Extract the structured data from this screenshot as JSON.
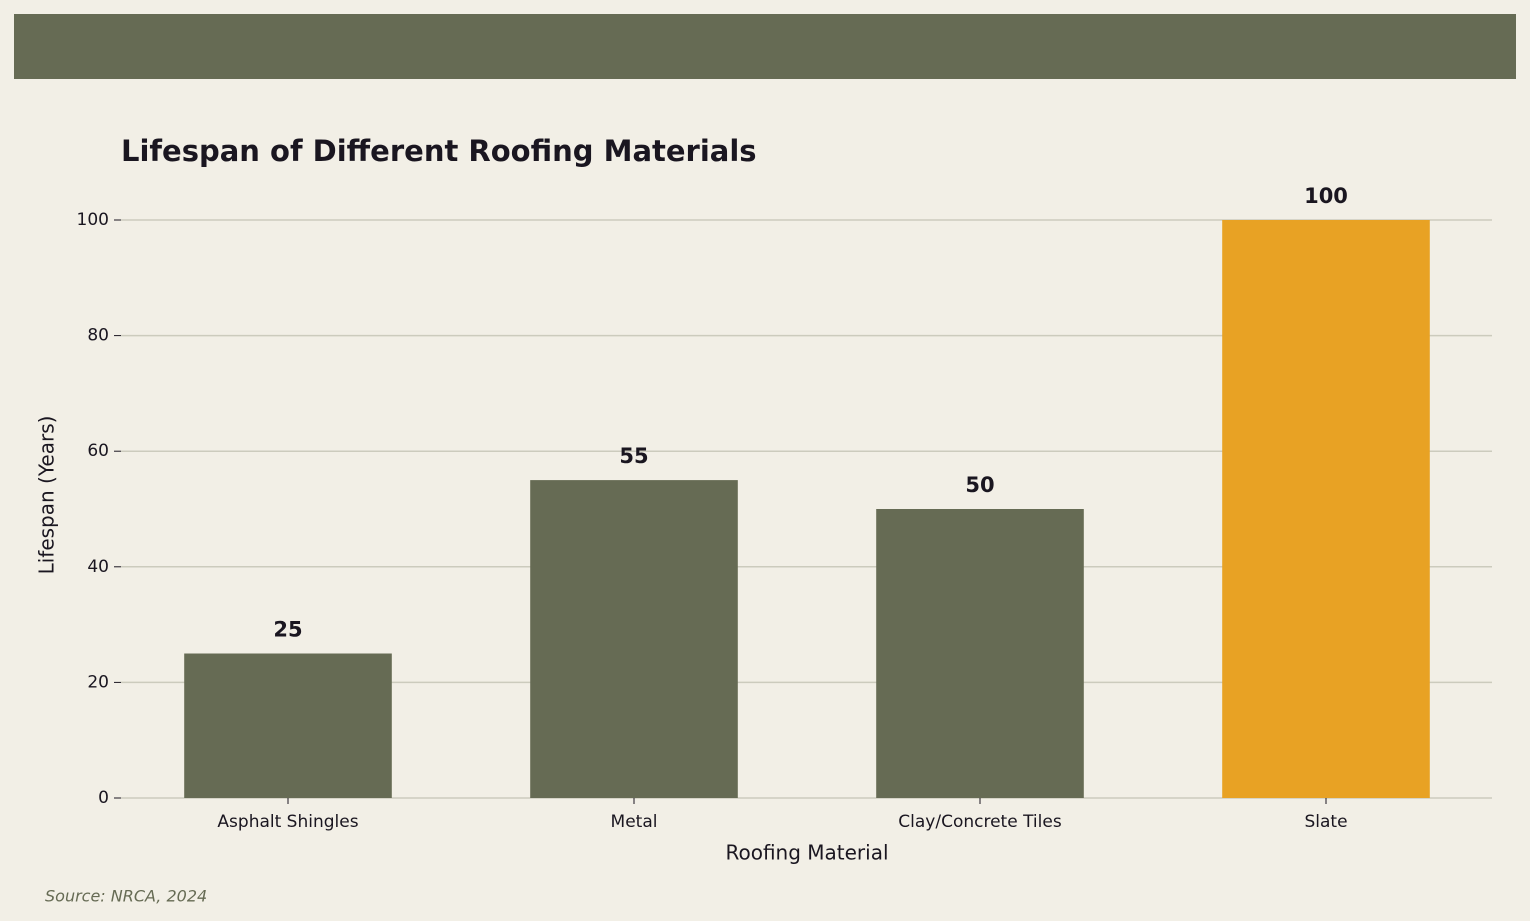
{
  "chart_data": {
    "type": "bar",
    "title": "Lifespan of Different Roofing Materials",
    "xlabel": "Roofing Material",
    "ylabel": "Lifespan (Years)",
    "categories": [
      "Asphalt Shingles",
      "Metal",
      "Clay/Concrete Tiles",
      "Slate"
    ],
    "values": [
      25,
      55,
      50,
      100
    ],
    "colors": [
      "#666b54",
      "#666b54",
      "#666b54",
      "#e8a224"
    ],
    "ylim": [
      0,
      100
    ],
    "yticks": [
      0,
      20,
      40,
      60,
      80,
      100
    ],
    "grid": true,
    "source": "Source: NRCA, 2024"
  }
}
